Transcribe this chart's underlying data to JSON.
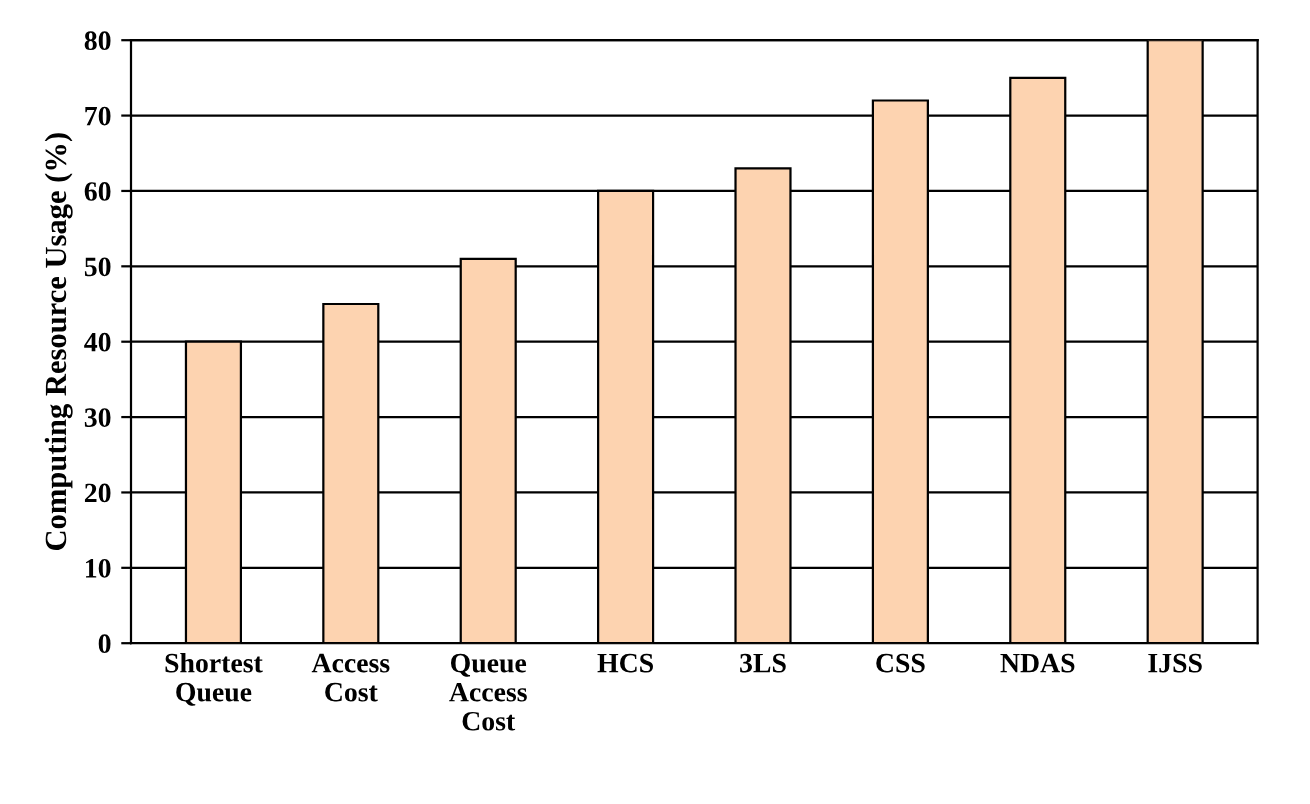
{
  "chart_data": {
    "type": "bar",
    "ylabel": "Computing Resource Usage (%)",
    "categories": [
      "Shortest\nQueue",
      "Access\nCost",
      "Queue\nAccess\nCost",
      "HCS",
      "3LS",
      "CSS",
      "NDAS",
      "IJSS"
    ],
    "values": [
      40,
      45,
      51,
      60,
      63,
      72,
      75,
      80
    ],
    "color": "#fdd3b0",
    "ylim": [
      0,
      80
    ],
    "yticks": [
      0,
      10,
      20,
      30,
      40,
      50,
      60,
      70,
      80
    ],
    "grid": "y"
  }
}
